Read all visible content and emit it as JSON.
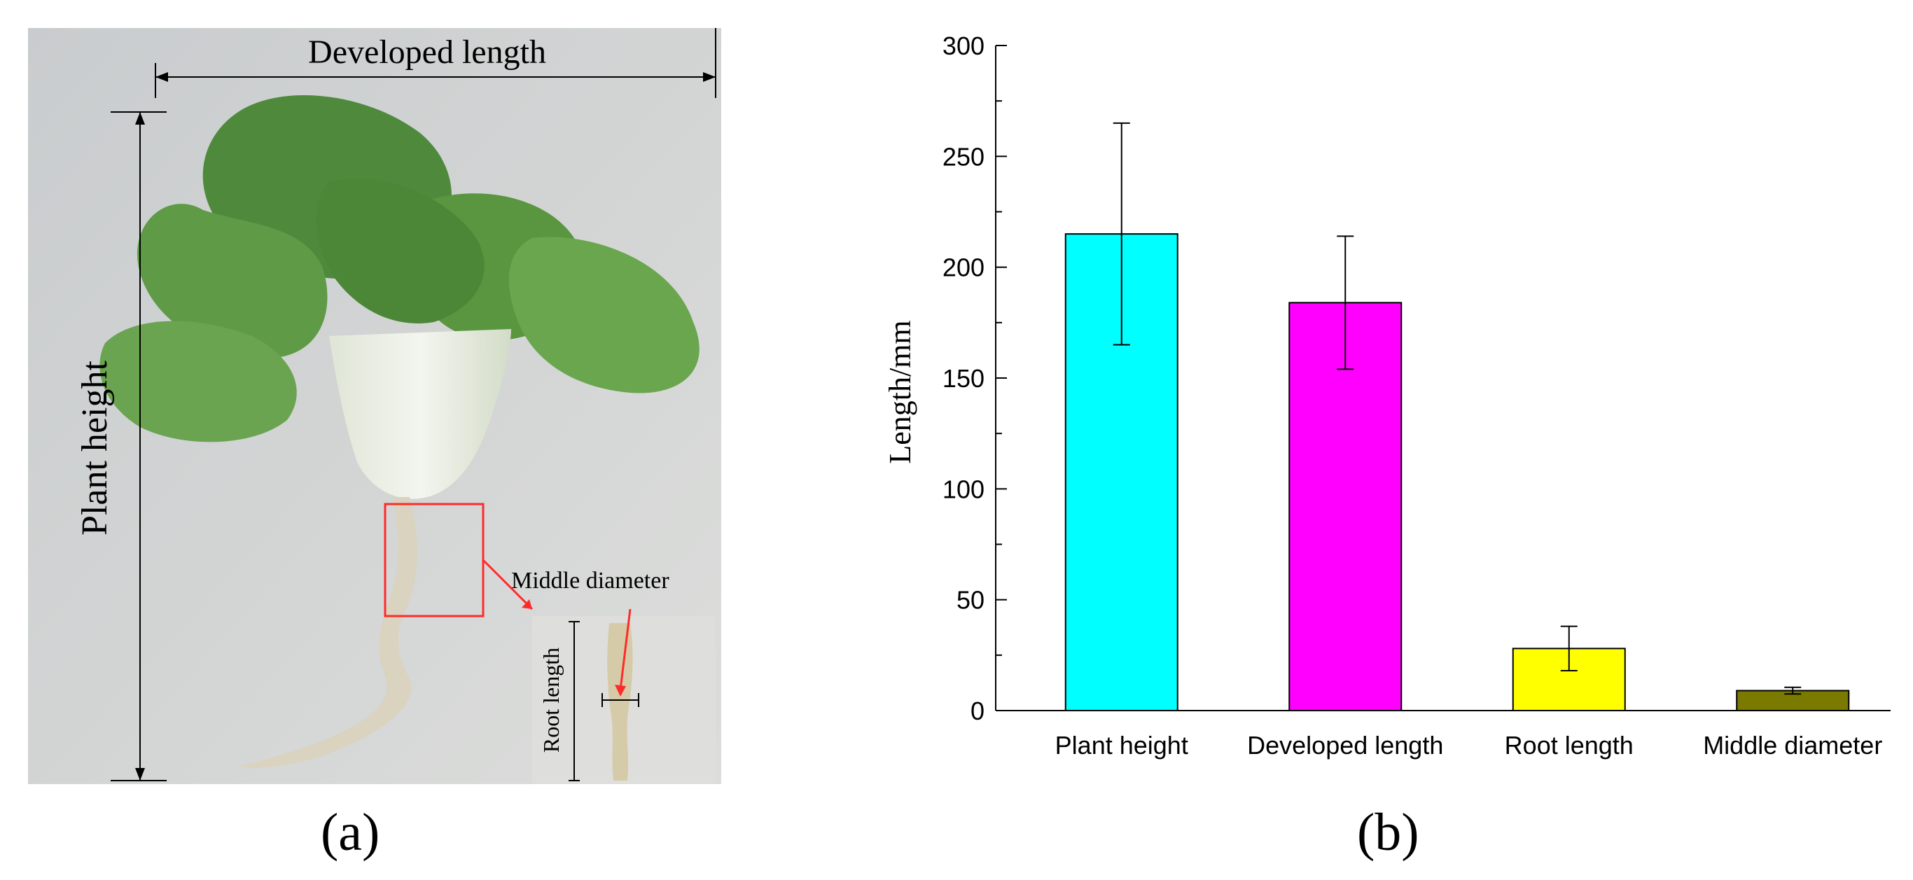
{
  "panel_a": {
    "label": "(a)",
    "annotations": {
      "developed_length": "Developed  length",
      "plant_height": "Plant  height",
      "middle_diameter": "Middle diameter",
      "root_length": "Root length"
    }
  },
  "panel_b": {
    "label": "(b)"
  },
  "chart_data": {
    "type": "bar",
    "categories": [
      "Plant  height",
      "Developed length",
      "Root length",
      "Middle diameter"
    ],
    "values": [
      215,
      184,
      28,
      9
    ],
    "errors": [
      50,
      30,
      10,
      1.5
    ],
    "colors": [
      "#00ffff",
      "#ff00ff",
      "#ffff00",
      "#7a7a00"
    ],
    "xlabel": "",
    "ylabel": "Length/mm",
    "ylim": [
      0,
      300
    ],
    "yticks": [
      0,
      50,
      100,
      150,
      200,
      250,
      300
    ],
    "grid": false,
    "legend": "none"
  }
}
